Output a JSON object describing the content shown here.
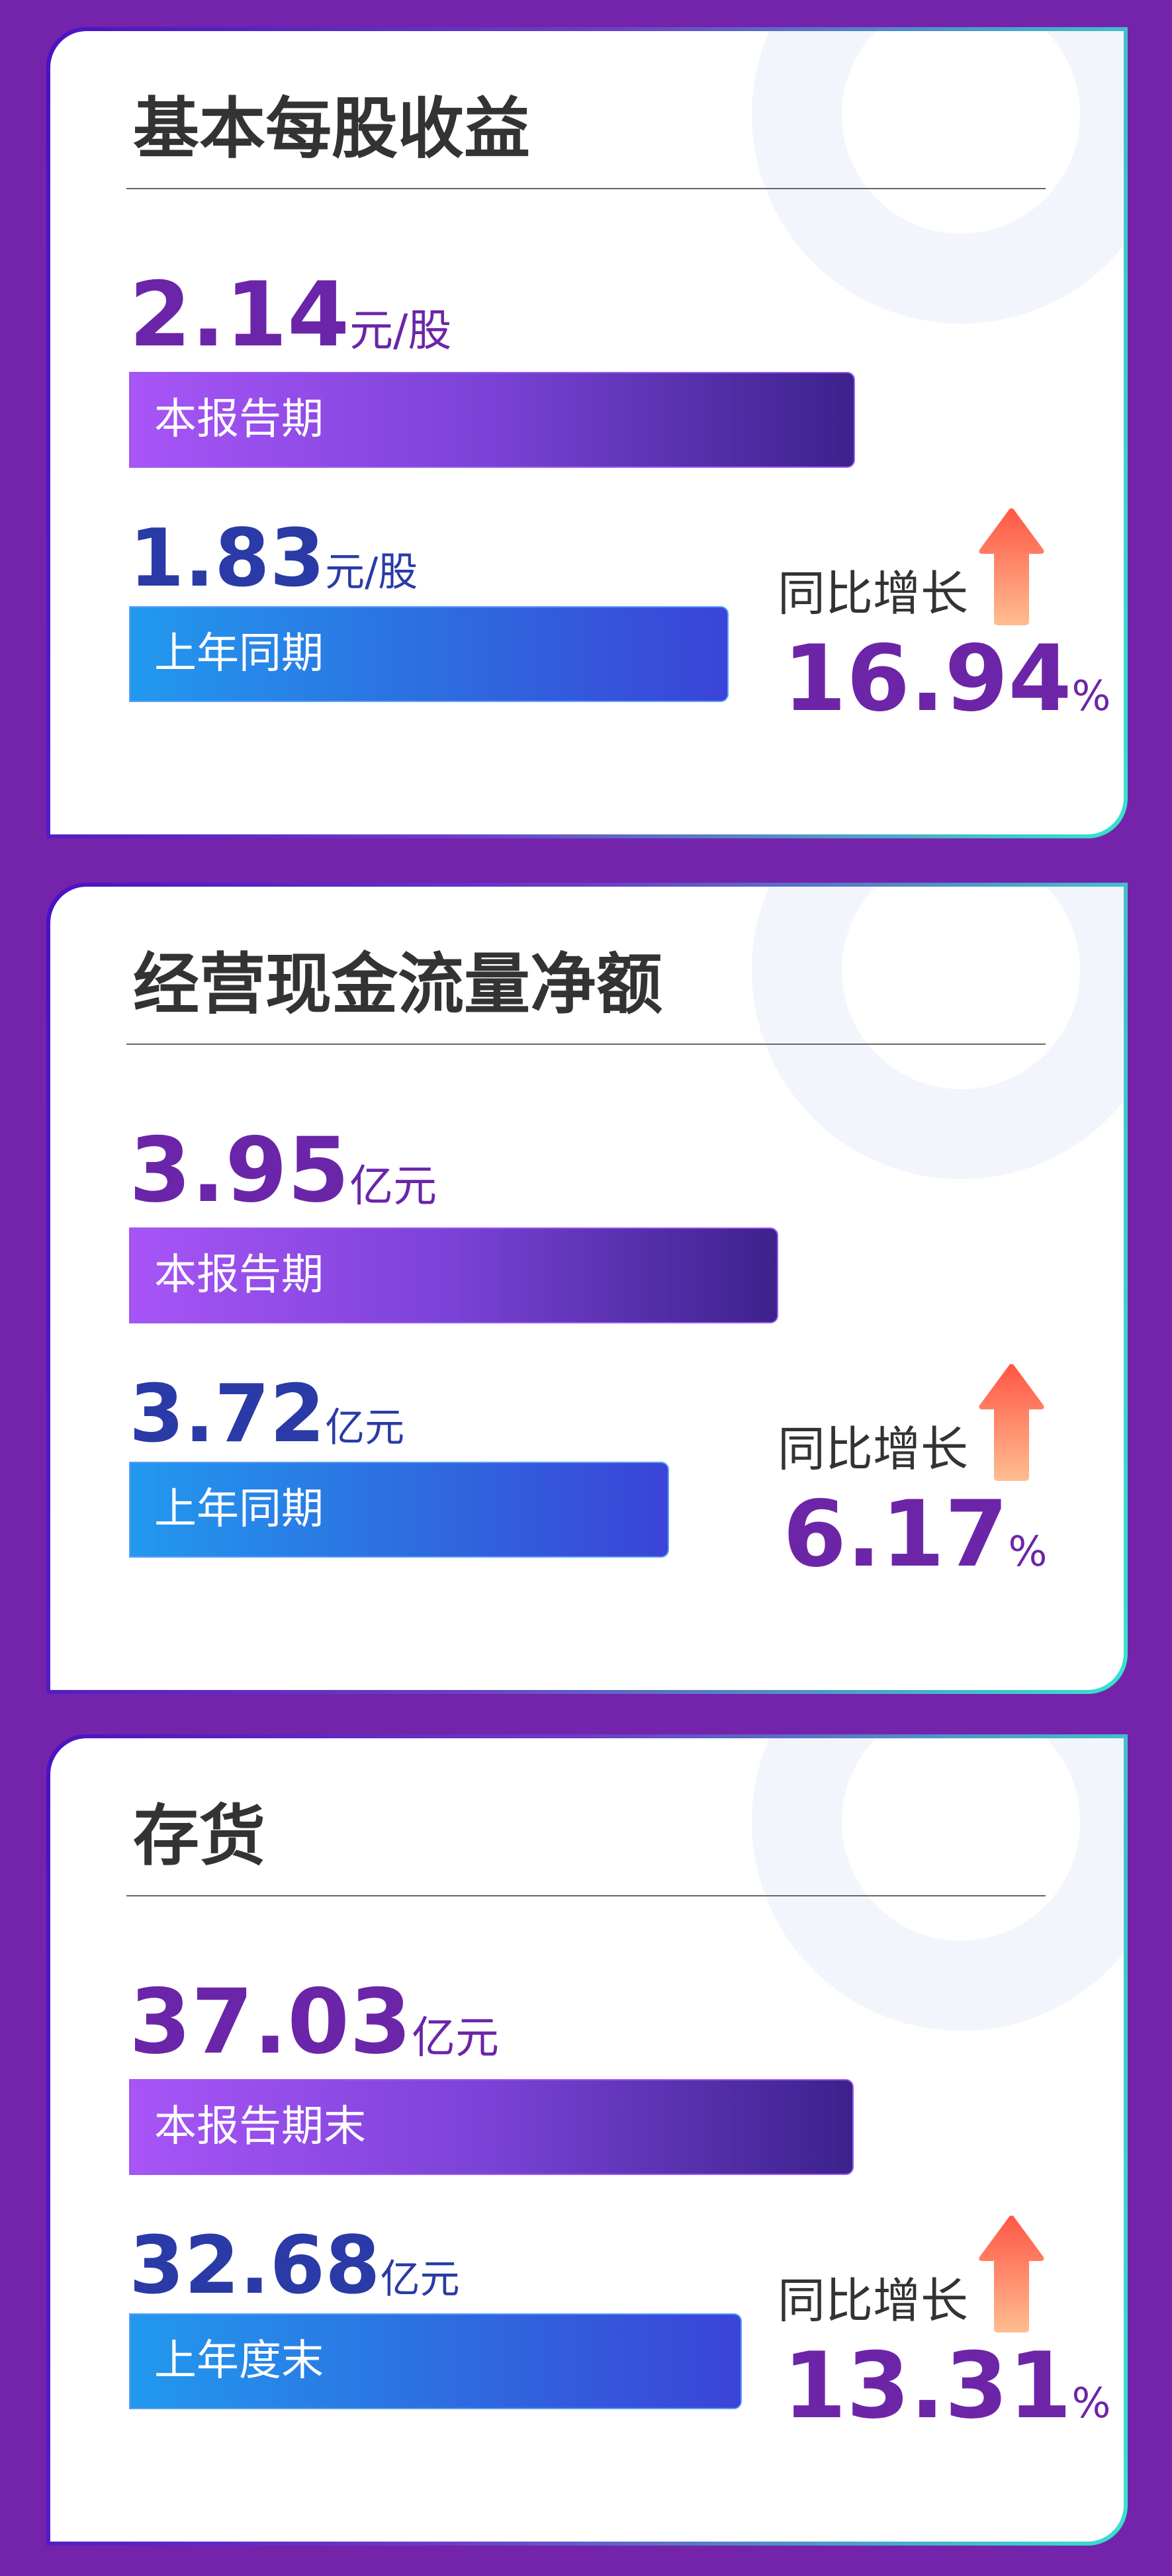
{
  "colors": {
    "background": "#7423ab",
    "current_value": "#6b25a8",
    "prior_value": "#2a3aa6",
    "growth": "#6d25a8",
    "arrow": "#ff5a47"
  },
  "cards": [
    {
      "title": "基本每股收益",
      "current": {
        "value": "2.14",
        "unit": "元/股",
        "label": "本报告期"
      },
      "prior": {
        "value": "1.83",
        "unit": "元/股",
        "label": "上年同期"
      },
      "growth_label": "同比增长",
      "growth_value": "16.94",
      "growth_unit": "%",
      "growth_icon": "arrow-up-icon",
      "bar_ratio": [
        1.0,
        0.826
      ]
    },
    {
      "title": "经营现金流量净额",
      "current": {
        "value": "3.95",
        "unit": "亿元",
        "label": "本报告期"
      },
      "prior": {
        "value": "3.72",
        "unit": "亿元",
        "label": "上年同期"
      },
      "growth_label": "同比增长",
      "growth_value": "6.17",
      "growth_unit": "%",
      "growth_icon": "arrow-up-icon",
      "bar_ratio": [
        0.894,
        0.744
      ]
    },
    {
      "title": "存货",
      "current": {
        "value": "37.03",
        "unit": "亿元",
        "label": "本报告期末"
      },
      "prior": {
        "value": "32.68",
        "unit": "亿元",
        "label": "上年度末"
      },
      "growth_label": "同比增长",
      "growth_value": "13.31",
      "growth_unit": "%",
      "growth_icon": "arrow-up-icon",
      "bar_ratio": [
        0.998,
        0.844
      ]
    }
  ]
}
